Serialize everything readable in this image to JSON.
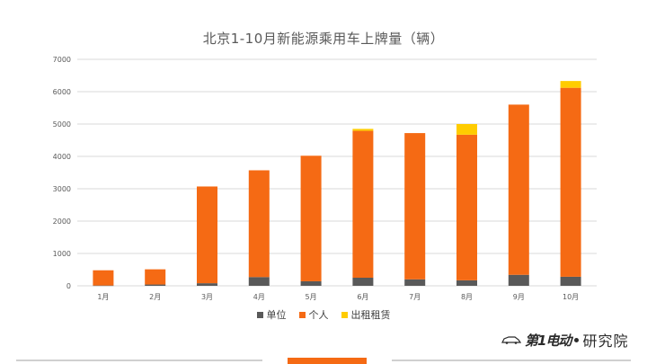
{
  "chart_data": {
    "type": "bar",
    "stacked": true,
    "title": "北京1-10月新能源乘用车上牌量（辆）",
    "categories": [
      "1月",
      "2月",
      "3月",
      "4月",
      "5月",
      "6月",
      "7月",
      "8月",
      "9月",
      "10月"
    ],
    "ylim": [
      0,
      7000
    ],
    "yticks": [
      0,
      1000,
      2000,
      3000,
      4000,
      5000,
      6000,
      7000
    ],
    "grid": true,
    "legend_position": "bottom",
    "series": [
      {
        "name": "单位",
        "color": "#595959",
        "values": [
          10,
          40,
          80,
          270,
          140,
          250,
          200,
          170,
          340,
          280
        ]
      },
      {
        "name": "个人",
        "color": "#f56a14",
        "values": [
          470,
          470,
          2990,
          3300,
          3880,
          4540,
          4520,
          4500,
          5260,
          5840
        ]
      },
      {
        "name": "出租租赁",
        "color": "#ffcc00",
        "values": [
          0,
          0,
          0,
          0,
          0,
          60,
          0,
          330,
          0,
          210
        ]
      }
    ]
  },
  "logo": {
    "brand_text": "第1电动",
    "brand_suffix": "研究院"
  }
}
